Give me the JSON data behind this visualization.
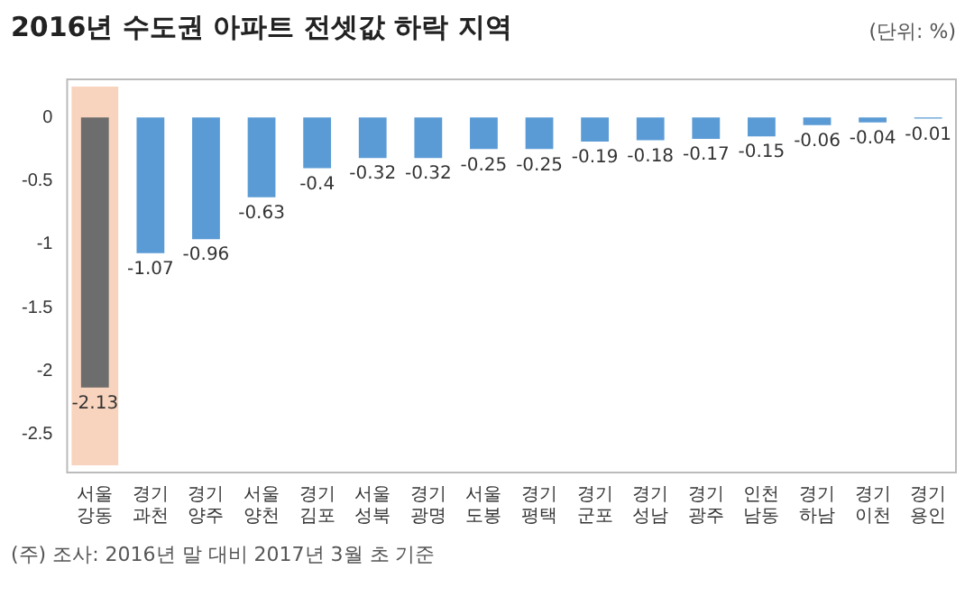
{
  "chart_data": {
    "type": "bar",
    "title": "2016년 수도권 아파트 전셋값 하락 지역",
    "subtitle": "(단위: %)",
    "categories": [
      "서울 강동",
      "경기 과천",
      "경기 양주",
      "서울 양천",
      "경기 김포",
      "서울 성북",
      "경기 광명",
      "서울 도봉",
      "경기 평택",
      "경기 군포",
      "경기 성남",
      "경기 광주",
      "인천 남동",
      "경기 하남",
      "경기 이천",
      "경기 용인"
    ],
    "values": [
      -2.13,
      -1.07,
      -0.96,
      -0.63,
      -0.4,
      -0.32,
      -0.32,
      -0.25,
      -0.25,
      -0.19,
      -0.18,
      -0.17,
      -0.15,
      -0.06,
      -0.04,
      -0.01
    ],
    "colors": [
      "#6d6d6d",
      "#5b9bd5",
      "#5b9bd5",
      "#5b9bd5",
      "#5b9bd5",
      "#5b9bd5",
      "#5b9bd5",
      "#5b9bd5",
      "#5b9bd5",
      "#5b9bd5",
      "#5b9bd5",
      "#5b9bd5",
      "#5b9bd5",
      "#5b9bd5",
      "#5b9bd5",
      "#5b9bd5"
    ],
    "ylim": [
      -2.8,
      0.3
    ],
    "yticks": [
      0,
      -0.5,
      -1,
      -1.5,
      -2,
      -2.5
    ],
    "bands": [
      {
        "axis": "x",
        "from": "서울 강동",
        "to": "서울 강동",
        "color": "#f8d3bd"
      }
    ],
    "data_labels": true,
    "grid": false,
    "legend": false,
    "annotations": [
      "(주) 조사: 2016년 말 대비 2017년 3월 초 기준"
    ]
  }
}
